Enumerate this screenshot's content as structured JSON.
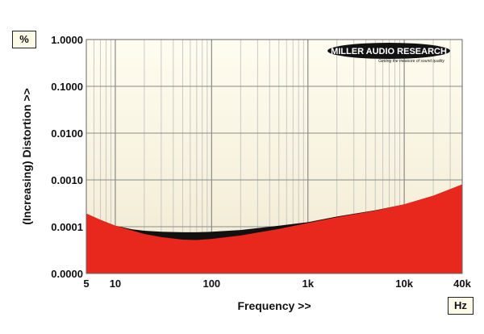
{
  "chart_data": {
    "type": "area",
    "title": "",
    "xlabel": "Frequency >>",
    "ylabel": "(Increasing) Distortion >>",
    "x_unit": "Hz",
    "y_unit": "%",
    "x_scale": "log",
    "xlim": [
      5,
      40000
    ],
    "x_ticks": [
      {
        "value": 5,
        "label": "5"
      },
      {
        "value": 10,
        "label": "10"
      },
      {
        "value": 100,
        "label": "100"
      },
      {
        "value": 1000,
        "label": "1k"
      },
      {
        "value": 10000,
        "label": "10k"
      },
      {
        "value": 40000,
        "label": "40k"
      }
    ],
    "y_ticks": [
      "0.0000",
      "0.0001",
      "0.0010",
      "0.0100",
      "0.1000",
      "1.0000"
    ],
    "grid": true,
    "brand": {
      "name": "MILLER AUDIO RESEARCH",
      "tagline": "Getting the measure of sound quality"
    },
    "series": [
      {
        "color": "#e8281c",
        "points": [
          [
            5,
            0.00019
          ],
          [
            7,
            0.00014
          ],
          [
            10,
            0.000105
          ],
          [
            20,
            7e-05
          ],
          [
            30,
            6e-05
          ],
          [
            50,
            5.3e-05
          ],
          [
            70,
            5.2e-05
          ],
          [
            100,
            5.5e-05
          ],
          [
            200,
            6.5e-05
          ],
          [
            500,
            9e-05
          ],
          [
            1000,
            0.00012
          ],
          [
            2000,
            0.00016
          ],
          [
            5000,
            0.00022
          ],
          [
            10000,
            0.0003
          ],
          [
            20000,
            0.00046
          ],
          [
            40000,
            0.0008
          ]
        ]
      },
      {
        "color": "#111111",
        "points": [
          [
            5,
            0.00019
          ],
          [
            7,
            0.00014
          ],
          [
            10,
            0.000105
          ],
          [
            15,
            8.8e-05
          ],
          [
            20,
            8.2e-05
          ],
          [
            30,
            7.8e-05
          ],
          [
            50,
            7.6e-05
          ],
          [
            70,
            7.6e-05
          ],
          [
            100,
            7.8e-05
          ],
          [
            200,
            8.5e-05
          ],
          [
            500,
            0.000105
          ],
          [
            1000,
            0.000125
          ],
          [
            2000,
            0.000165
          ],
          [
            5000,
            0.000225
          ],
          [
            10000,
            0.0003
          ],
          [
            20000,
            0.00046
          ],
          [
            40000,
            0.0008
          ]
        ]
      }
    ]
  }
}
